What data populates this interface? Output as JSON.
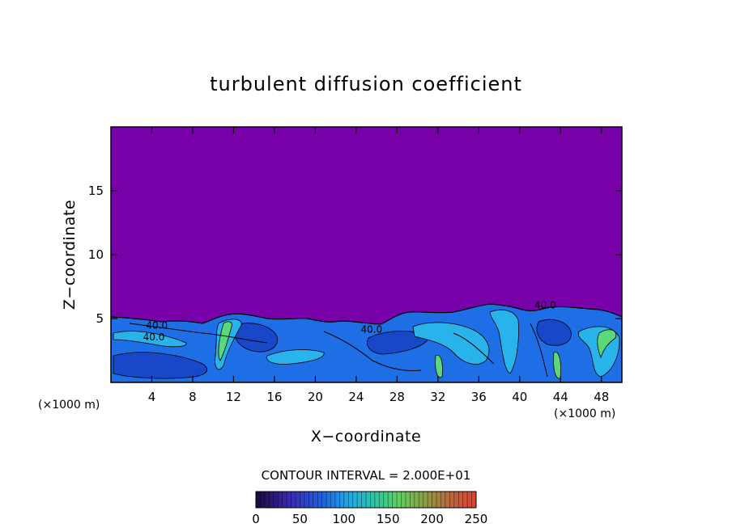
{
  "chart_data": {
    "type": "heatmap",
    "title": "turbulent diffusion coefficient",
    "xlabel": "X−coordinate",
    "ylabel": "Z−coordinate",
    "x_unit": "(×1000 m)",
    "x_unit_right": "(×1000 m)",
    "xlim": [
      0,
      50
    ],
    "ylim": [
      0,
      20
    ],
    "x_ticks": [
      4,
      8,
      12,
      16,
      20,
      24,
      28,
      32,
      36,
      40,
      44,
      48
    ],
    "x_tick_labels": [
      "4",
      "8",
      "12",
      "16",
      "20",
      "24",
      "28",
      "32",
      "36",
      "40",
      "44",
      "48"
    ],
    "y_ticks": [
      5,
      10,
      15
    ],
    "y_tick_labels": [
      "5",
      "10",
      "15"
    ],
    "contour_interval_label": "CONTOUR INTERVAL = 2.000E+01",
    "contour_labels": [
      {
        "text": "40.0",
        "x": 4.5,
        "z": 4.2
      },
      {
        "text": "40.0",
        "x": 4.2,
        "z": 3.3
      },
      {
        "text": "40.0",
        "x": 25.5,
        "z": 3.9
      },
      {
        "text": "40.0",
        "x": 42.5,
        "z": 5.8
      }
    ],
    "background_value": 0,
    "colorbar": {
      "min": 0,
      "max": 250,
      "ticks": [
        0,
        50,
        100,
        150,
        200,
        250
      ],
      "tick_labels": [
        "0",
        "50",
        "100",
        "150",
        "200",
        "250"
      ]
    },
    "colors": {
      "background_field": "#7700a8",
      "low": "#3a1a9a",
      "mid_blue": "#1a66e0",
      "cyan": "#22b0e6",
      "green": "#66e07a",
      "high": "#d84030"
    }
  }
}
